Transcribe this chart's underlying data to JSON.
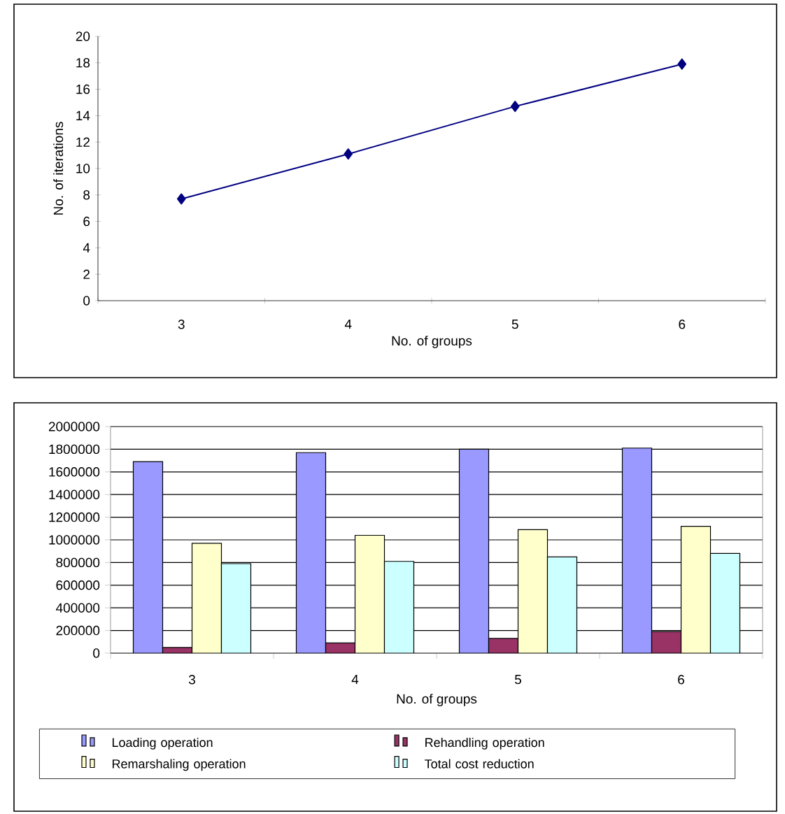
{
  "chart_data": [
    {
      "type": "line",
      "xlabel": "No. of groups",
      "ylabel": "No. of iterations",
      "categories": [
        "3",
        "4",
        "5",
        "6"
      ],
      "series": [
        {
          "color": "#000080",
          "values": [
            7.7,
            11.1,
            14.7,
            17.9
          ]
        }
      ],
      "ylim": [
        0,
        20
      ],
      "yticks": [
        0,
        2,
        4,
        6,
        8,
        10,
        12,
        14,
        16,
        18,
        20
      ],
      "marker": "diamond",
      "grid": false,
      "legend": false
    },
    {
      "type": "bar",
      "xlabel": "No. of groups",
      "categories": [
        "3",
        "4",
        "5",
        "6"
      ],
      "series": [
        {
          "name": "Loading operation",
          "color": "#9999ff",
          "values": [
            1690000,
            1770000,
            1800000,
            1810000
          ]
        },
        {
          "name": "Rehandling operation",
          "color": "#993366",
          "values": [
            50000,
            90000,
            130000,
            190000
          ]
        },
        {
          "name": "Remarshaling operation",
          "color": "#ffffcc",
          "values": [
            970000,
            1040000,
            1090000,
            1120000
          ]
        },
        {
          "name": "Total cost reduction",
          "color": "#ccffff",
          "values": [
            790000,
            810000,
            850000,
            880000
          ]
        }
      ],
      "ylim": [
        0,
        2000000
      ],
      "yticks": [
        0,
        200000,
        400000,
        600000,
        800000,
        1000000,
        1200000,
        1400000,
        1600000,
        1800000,
        2000000
      ],
      "grid": "y",
      "legend": "bottom"
    }
  ]
}
